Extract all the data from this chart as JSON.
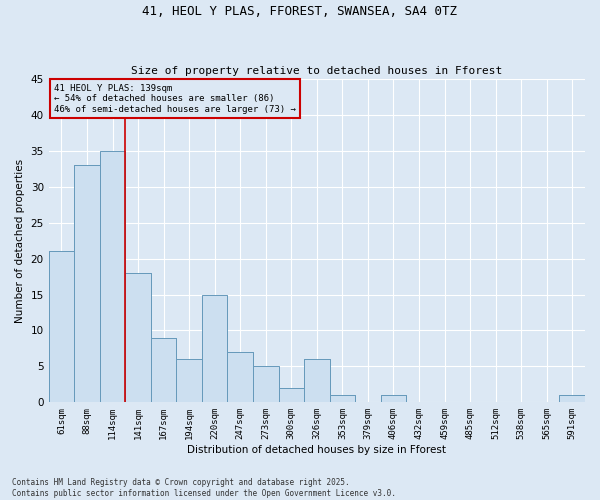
{
  "title1": "41, HEOL Y PLAS, FFOREST, SWANSEA, SA4 0TZ",
  "title2": "Size of property relative to detached houses in Fforest",
  "xlabel": "Distribution of detached houses by size in Fforest",
  "ylabel": "Number of detached properties",
  "bar_labels": [
    "61sqm",
    "88sqm",
    "114sqm",
    "141sqm",
    "167sqm",
    "194sqm",
    "220sqm",
    "247sqm",
    "273sqm",
    "300sqm",
    "326sqm",
    "353sqm",
    "379sqm",
    "406sqm",
    "432sqm",
    "459sqm",
    "485sqm",
    "512sqm",
    "538sqm",
    "565sqm",
    "591sqm"
  ],
  "bar_values": [
    21,
    33,
    35,
    18,
    9,
    6,
    15,
    7,
    5,
    2,
    6,
    1,
    0,
    1,
    0,
    0,
    0,
    0,
    0,
    0,
    1
  ],
  "bar_color": "#ccdff0",
  "bar_edge_color": "#6699bb",
  "background_color": "#dce8f4",
  "grid_color": "#ffffff",
  "red_line_index": 3,
  "annotation_title": "41 HEOL Y PLAS: 139sqm",
  "annotation_line1": "← 54% of detached houses are smaller (86)",
  "annotation_line2": "46% of semi-detached houses are larger (73) →",
  "annotation_box_color": "#cc0000",
  "ylim": [
    0,
    45
  ],
  "yticks": [
    0,
    5,
    10,
    15,
    20,
    25,
    30,
    35,
    40,
    45
  ],
  "footer1": "Contains HM Land Registry data © Crown copyright and database right 2025.",
  "footer2": "Contains public sector information licensed under the Open Government Licence v3.0."
}
